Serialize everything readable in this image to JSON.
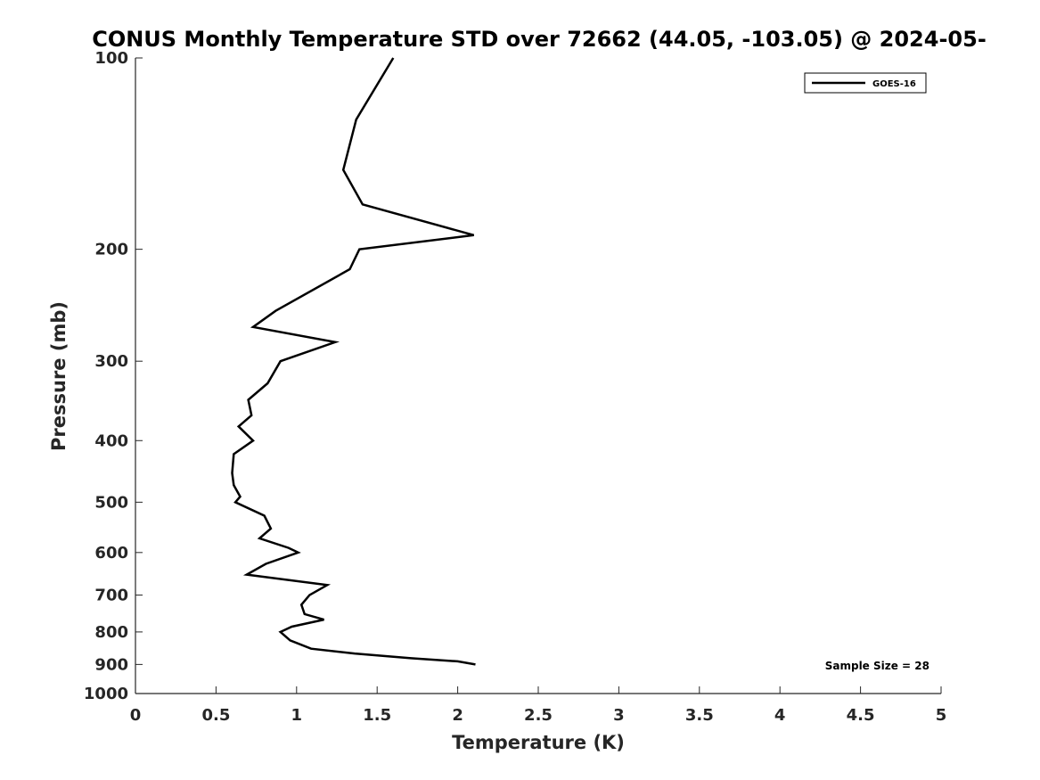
{
  "chart_data": {
    "type": "line",
    "title": "CONUS Monthly Temperature STD over 72662 (44.05, -103.05) @ 2024-05-",
    "xlabel": "Temperature (K)",
    "ylabel": "Pressure (mb)",
    "xlim": [
      0,
      5
    ],
    "ylim": [
      100,
      1000
    ],
    "y_scale": "log",
    "y_reversed": true,
    "x_ticks": [
      "0",
      "0.5",
      "1",
      "1.5",
      "2",
      "2.5",
      "3",
      "3.5",
      "4",
      "4.5",
      "5"
    ],
    "y_ticks": [
      "100",
      "200",
      "300",
      "400",
      "500",
      "600",
      "700",
      "800",
      "900",
      "1000"
    ],
    "grid": false,
    "legend_position": "top-right",
    "series": [
      {
        "name": "GOES-16",
        "color": "#000000",
        "points": [
          [
            1.6,
            100
          ],
          [
            1.37,
            125
          ],
          [
            1.29,
            150
          ],
          [
            1.41,
            170
          ],
          [
            2.1,
            190
          ],
          [
            1.39,
            200
          ],
          [
            1.33,
            215
          ],
          [
            0.87,
            250
          ],
          [
            0.73,
            265
          ],
          [
            1.24,
            280
          ],
          [
            0.9,
            300
          ],
          [
            0.82,
            325
          ],
          [
            0.7,
            345
          ],
          [
            0.72,
            365
          ],
          [
            0.64,
            380
          ],
          [
            0.73,
            400
          ],
          [
            0.61,
            420
          ],
          [
            0.6,
            450
          ],
          [
            0.61,
            470
          ],
          [
            0.65,
            490
          ],
          [
            0.62,
            500
          ],
          [
            0.8,
            525
          ],
          [
            0.84,
            550
          ],
          [
            0.77,
            570
          ],
          [
            0.95,
            590
          ],
          [
            1.01,
            600
          ],
          [
            0.81,
            625
          ],
          [
            0.69,
            650
          ],
          [
            1.19,
            675
          ],
          [
            1.08,
            700
          ],
          [
            1.03,
            725
          ],
          [
            1.05,
            750
          ],
          [
            1.17,
            765
          ],
          [
            0.97,
            785
          ],
          [
            0.9,
            800
          ],
          [
            0.96,
            825
          ],
          [
            1.09,
            850
          ],
          [
            1.36,
            865
          ],
          [
            1.71,
            880
          ],
          [
            2.0,
            890
          ],
          [
            2.11,
            900
          ]
        ]
      }
    ],
    "annotation": "Sample Size = 28"
  }
}
